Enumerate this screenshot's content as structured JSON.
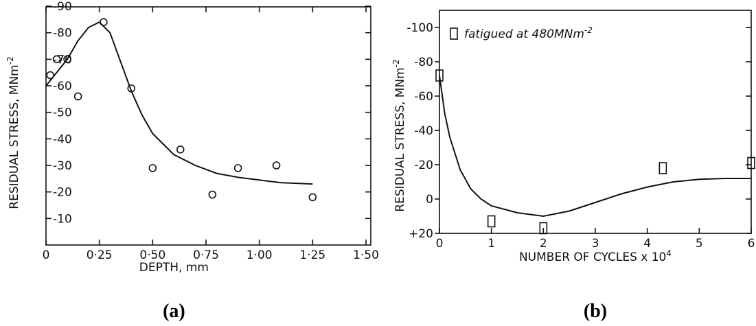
{
  "chart_data": [
    {
      "type": "scatter",
      "caption": "(a)",
      "xlabel": "DEPTH, mm",
      "ylabel": "RESIDUAL STRESS, MNm",
      "ylabel_sup": "-2",
      "xlim": [
        0,
        1.5
      ],
      "ylim": [
        -90,
        0
      ],
      "x_ticks": [
        {
          "value": 0,
          "label": "0"
        },
        {
          "value": 0.25,
          "label": "0·25"
        },
        {
          "value": 0.5,
          "label": "0·50"
        },
        {
          "value": 0.75,
          "label": "0·75"
        },
        {
          "value": 1.0,
          "label": "1·00"
        },
        {
          "value": 1.25,
          "label": "1·25"
        },
        {
          "value": 1.5,
          "label": "1·50"
        }
      ],
      "y_ticks": [
        {
          "value": -90,
          "label": "-90"
        },
        {
          "value": -80,
          "label": "-80"
        },
        {
          "value": -70,
          "label": "-70"
        },
        {
          "value": -60,
          "label": "-60"
        },
        {
          "value": -50,
          "label": "-50"
        },
        {
          "value": -40,
          "label": "-40"
        },
        {
          "value": -30,
          "label": "-30"
        },
        {
          "value": -20,
          "label": "-20"
        },
        {
          "value": -10,
          "label": "-10"
        }
      ],
      "points": [
        {
          "x": 0.02,
          "y": -64
        },
        {
          "x": 0.05,
          "y": -70
        },
        {
          "x": 0.1,
          "y": -70
        },
        {
          "x": 0.15,
          "y": -56
        },
        {
          "x": 0.27,
          "y": -84
        },
        {
          "x": 0.4,
          "y": -59
        },
        {
          "x": 0.5,
          "y": -29
        },
        {
          "x": 0.63,
          "y": -36
        },
        {
          "x": 0.78,
          "y": -19
        },
        {
          "x": 0.9,
          "y": -29
        },
        {
          "x": 1.08,
          "y": -30
        },
        {
          "x": 1.25,
          "y": -18
        }
      ],
      "curve": [
        {
          "x": 0.0,
          "y": -60
        },
        {
          "x": 0.05,
          "y": -65
        },
        {
          "x": 0.1,
          "y": -70
        },
        {
          "x": 0.15,
          "y": -77
        },
        {
          "x": 0.2,
          "y": -82
        },
        {
          "x": 0.25,
          "y": -84
        },
        {
          "x": 0.3,
          "y": -80
        },
        {
          "x": 0.35,
          "y": -69
        },
        {
          "x": 0.4,
          "y": -58
        },
        {
          "x": 0.45,
          "y": -49
        },
        {
          "x": 0.5,
          "y": -42
        },
        {
          "x": 0.6,
          "y": -34
        },
        {
          "x": 0.7,
          "y": -30
        },
        {
          "x": 0.8,
          "y": -27
        },
        {
          "x": 0.9,
          "y": -25.5
        },
        {
          "x": 1.0,
          "y": -24.5
        },
        {
          "x": 1.1,
          "y": -23.5
        },
        {
          "x": 1.25,
          "y": -23
        }
      ]
    },
    {
      "type": "scatter",
      "caption": "(b)",
      "xlabel": "NUMBER OF CYCLES x 10",
      "xlabel_sup": "4",
      "ylabel": "RESIDUAL STRESS, MNm",
      "ylabel_sup": "-2",
      "legend": "fatigued at 480MNm",
      "legend_sup": "-2",
      "legend_position": "top-left",
      "xlim": [
        0,
        6
      ],
      "ylim": [
        -110,
        20
      ],
      "x_ticks": [
        {
          "value": 0,
          "label": "0"
        },
        {
          "value": 1,
          "label": "1"
        },
        {
          "value": 2,
          "label": "2"
        },
        {
          "value": 3,
          "label": "3"
        },
        {
          "value": 4,
          "label": "4"
        },
        {
          "value": 5,
          "label": "5"
        },
        {
          "value": 6,
          "label": "6"
        }
      ],
      "y_ticks": [
        {
          "value": -100,
          "label": "-100"
        },
        {
          "value": -80,
          "label": "-80"
        },
        {
          "value": -60,
          "label": "-60"
        },
        {
          "value": -40,
          "label": "-40"
        },
        {
          "value": -20,
          "label": "-20"
        },
        {
          "value": 0,
          "label": "0"
        },
        {
          "value": 20,
          "label": "+20"
        }
      ],
      "points": [
        {
          "x": 0.0,
          "y": -72
        },
        {
          "x": 1.0,
          "y": 13
        },
        {
          "x": 2.0,
          "y": 17
        },
        {
          "x": 4.3,
          "y": -18
        },
        {
          "x": 6.0,
          "y": -21
        }
      ],
      "curve": [
        {
          "x": 0.0,
          "y": -72
        },
        {
          "x": 0.1,
          "y": -50
        },
        {
          "x": 0.2,
          "y": -36
        },
        {
          "x": 0.4,
          "y": -17
        },
        {
          "x": 0.6,
          "y": -6
        },
        {
          "x": 0.8,
          "y": 0
        },
        {
          "x": 1.0,
          "y": 4
        },
        {
          "x": 1.5,
          "y": 8
        },
        {
          "x": 2.0,
          "y": 10
        },
        {
          "x": 2.5,
          "y": 7
        },
        {
          "x": 3.0,
          "y": 2
        },
        {
          "x": 3.5,
          "y": -3
        },
        {
          "x": 4.0,
          "y": -7
        },
        {
          "x": 4.5,
          "y": -10
        },
        {
          "x": 5.0,
          "y": -11.5
        },
        {
          "x": 5.5,
          "y": -12
        },
        {
          "x": 6.0,
          "y": -12
        }
      ]
    }
  ]
}
